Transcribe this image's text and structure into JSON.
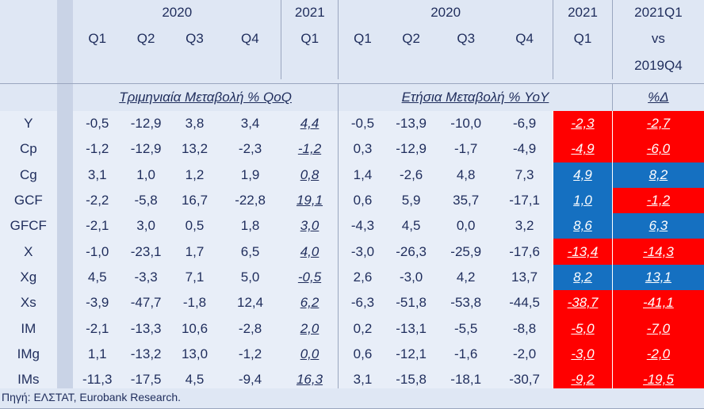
{
  "header": {
    "year_2020_left": "2020",
    "year_2021_left": "2021",
    "year_2020_right": "2020",
    "year_2021_right": "2021",
    "last_col_top": "2021Q1",
    "last_col_mid": "vs",
    "last_col_bot": "2019Q4",
    "quarters": [
      "Q1",
      "Q2",
      "Q3",
      "Q4",
      "Q1",
      "Q1",
      "Q2",
      "Q3",
      "Q4",
      "Q1"
    ]
  },
  "subheader": {
    "qoq": "Τριμηνιαία Μεταβολή % QoQ",
    "yoy": "Ετήσια Μεταβολή % YoY",
    "delta": "%Δ"
  },
  "rows": [
    {
      "label": "Y",
      "qoq": [
        "-0,5",
        "-12,9",
        "3,8",
        "3,4",
        "4,4"
      ],
      "yoy": [
        "-0,5",
        "-13,9",
        "-10,0",
        "-6,9",
        "-2,3"
      ],
      "delta": "-2,7"
    },
    {
      "label": "Cp",
      "qoq": [
        "-1,2",
        "-12,9",
        "13,2",
        "-2,3",
        "-1,2"
      ],
      "yoy": [
        "0,3",
        "-12,9",
        "-1,7",
        "-4,9",
        "-4,9"
      ],
      "delta": "-6,0"
    },
    {
      "label": "Cg",
      "qoq": [
        "3,1",
        "1,0",
        "1,2",
        "1,9",
        "0,8"
      ],
      "yoy": [
        "1,4",
        "-2,6",
        "4,8",
        "7,3",
        "4,9"
      ],
      "delta": "8,2"
    },
    {
      "label": "GCF",
      "qoq": [
        "-2,2",
        "-5,8",
        "16,7",
        "-22,8",
        "19,1"
      ],
      "yoy": [
        "0,6",
        "5,9",
        "35,7",
        "-17,1",
        "1,0"
      ],
      "delta": "-1,2"
    },
    {
      "label": "GFCF",
      "qoq": [
        "-2,1",
        "3,0",
        "0,5",
        "1,8",
        "3,0"
      ],
      "yoy": [
        "-4,3",
        "4,5",
        "0,0",
        "3,2",
        "8,6"
      ],
      "delta": "6,3"
    },
    {
      "label": "X",
      "qoq": [
        "-1,0",
        "-23,1",
        "1,7",
        "6,5",
        "4,0"
      ],
      "yoy": [
        "-3,0",
        "-26,3",
        "-25,9",
        "-17,6",
        "-13,4"
      ],
      "delta": "-14,3"
    },
    {
      "label": "Xg",
      "qoq": [
        "4,5",
        "-3,3",
        "7,1",
        "5,0",
        "-0,5"
      ],
      "yoy": [
        "2,6",
        "-3,0",
        "4,2",
        "13,7",
        "8,2"
      ],
      "delta": "13,1"
    },
    {
      "label": "Xs",
      "qoq": [
        "-3,9",
        "-47,7",
        "-1,8",
        "12,4",
        "6,2"
      ],
      "yoy": [
        "-6,3",
        "-51,8",
        "-53,8",
        "-44,5",
        "-38,7"
      ],
      "delta": "-41,1"
    },
    {
      "label": "IM",
      "qoq": [
        "-2,1",
        "-13,3",
        "10,6",
        "-2,8",
        "2,0"
      ],
      "yoy": [
        "0,2",
        "-13,1",
        "-5,5",
        "-8,8",
        "-5,0"
      ],
      "delta": "-7,0"
    },
    {
      "label": "IMg",
      "qoq": [
        "1,1",
        "-13,2",
        "13,0",
        "-1,2",
        "0,0"
      ],
      "yoy": [
        "0,6",
        "-12,1",
        "-1,6",
        "-2,0",
        "-3,0"
      ],
      "delta": "-2,0"
    },
    {
      "label": "IMs",
      "qoq": [
        "-11,3",
        "-17,5",
        "4,5",
        "-9,4",
        "16,3"
      ],
      "yoy": [
        "3,1",
        "-15,8",
        "-18,1",
        "-30,7",
        "-9,2"
      ],
      "delta": "-19,5"
    }
  ],
  "source_note": "Πηγή: ΕΛΣΤΑΤ, Eurobank Research.",
  "colors": {
    "negative": "#ff0000",
    "positive": "#1570c1",
    "header_bg": "#dfe7f4"
  }
}
